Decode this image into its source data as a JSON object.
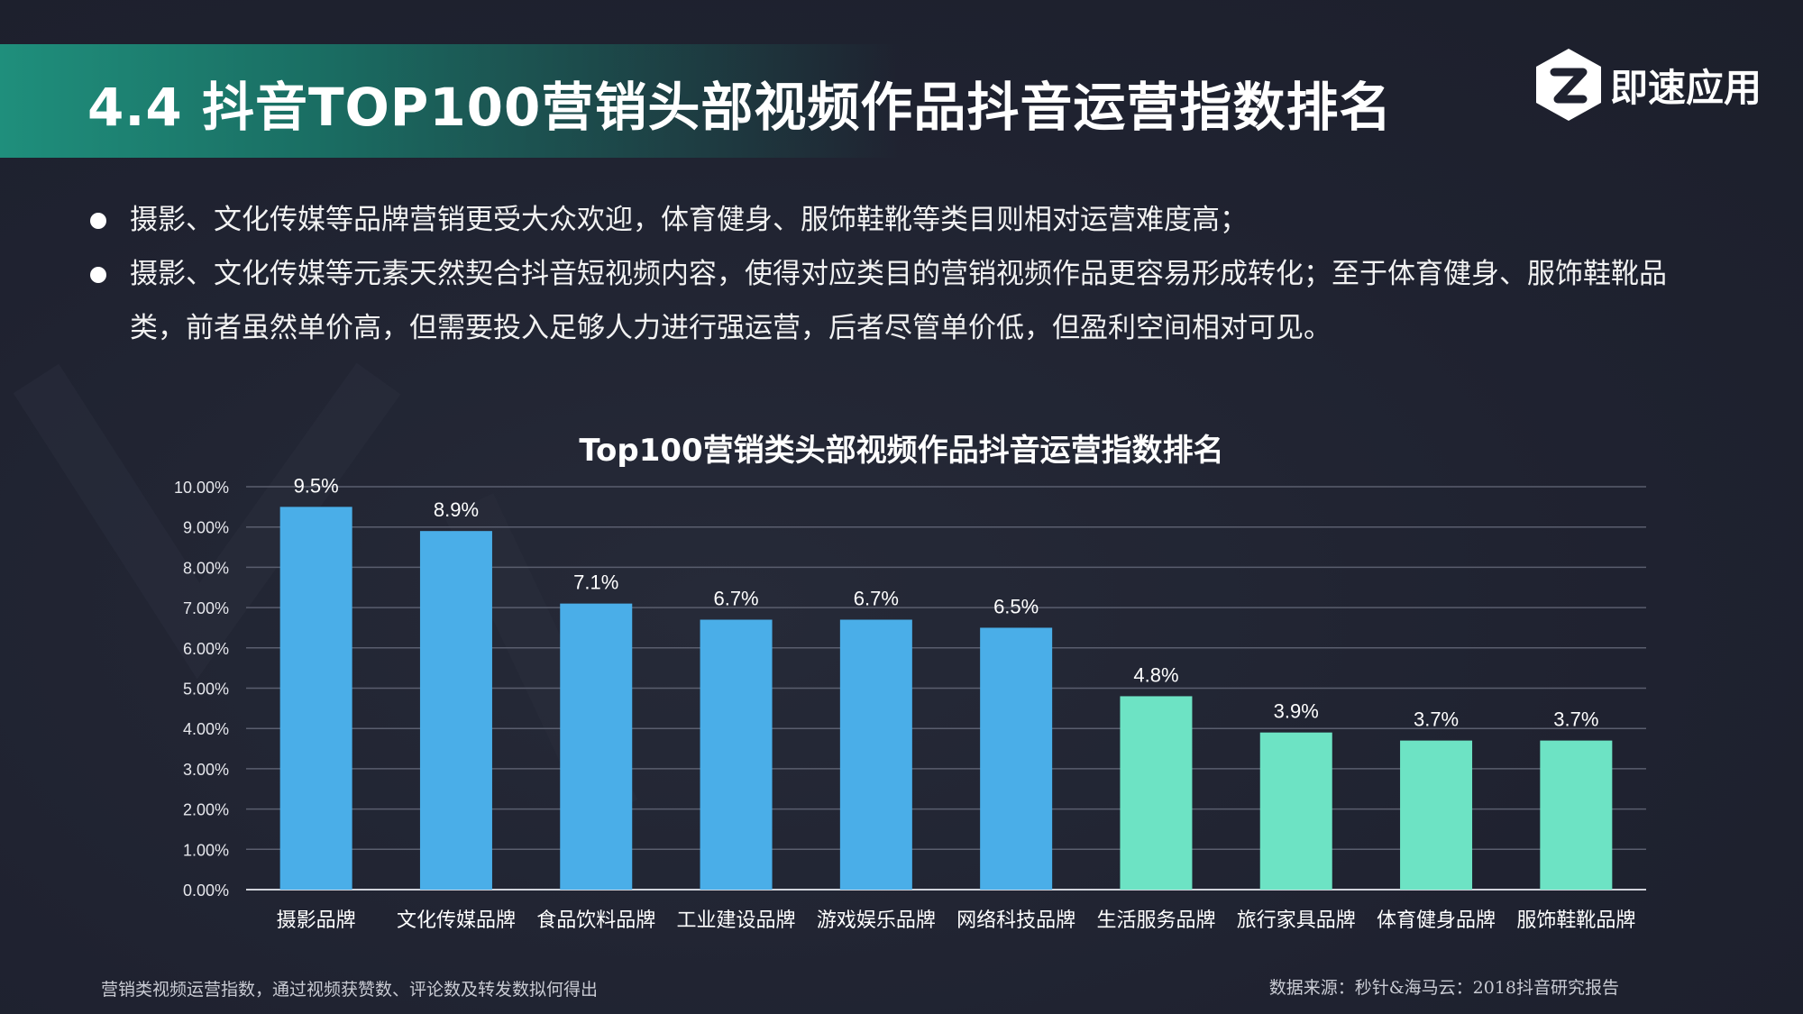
{
  "header": {
    "title": "4.4  抖音TOP100营销头部视频作品抖音运营指数排名",
    "logo_text": "即速应用"
  },
  "bullets": [
    "摄影、文化传媒等品牌营销更受大众欢迎，体育健身、服饰鞋靴等类目则相对运营难度高；",
    "摄影、文化传媒等元素天然契合抖音短视频内容，使得对应类目的营销视频作品更容易形成转化；至于体育健身、服饰鞋靴品类，前者虽然单价高，但需要投入足够人力进行强运营，后者尽管单价低，但盈利空间相对可见。"
  ],
  "footnotes": {
    "left": "营销类视频运营指数，通过视频获赞数、评论数及转发数拟何得出",
    "right": "数据来源：秒针&海马云：2018抖音研究报告"
  },
  "colors": {
    "background": "#1f2230",
    "accent": "#1f8f7c",
    "bar_blue": "#4aaee8",
    "bar_green": "#6de3c4",
    "grid": "#5a5e6e",
    "axis": "#d0d2da"
  },
  "chart_data": {
    "type": "bar",
    "title": "Top100营销类头部视频作品抖音运营指数排名",
    "categories": [
      "摄影品牌",
      "文化传媒品牌",
      "食品饮料品牌",
      "工业建设品牌",
      "游戏娱乐品牌",
      "网络科技品牌",
      "生活服务品牌",
      "旅行家具品牌",
      "体育健身品牌",
      "服饰鞋靴品牌"
    ],
    "values": [
      9.5,
      8.9,
      7.1,
      6.7,
      6.7,
      6.5,
      4.8,
      3.9,
      3.7,
      3.7
    ],
    "data_labels": [
      "9.5%",
      "8.9%",
      "7.1%",
      "6.7%",
      "6.7%",
      "6.5%",
      "4.8%",
      "3.9%",
      "3.7%",
      "3.7%"
    ],
    "bar_colors": [
      "#4aaee8",
      "#4aaee8",
      "#4aaee8",
      "#4aaee8",
      "#4aaee8",
      "#4aaee8",
      "#6de3c4",
      "#6de3c4",
      "#6de3c4",
      "#6de3c4"
    ],
    "y_ticks": [
      "0.00%",
      "1.00%",
      "2.00%",
      "3.00%",
      "4.00%",
      "5.00%",
      "6.00%",
      "7.00%",
      "8.00%",
      "9.00%",
      "10.00%"
    ],
    "ylim": [
      0,
      10
    ],
    "xlabel": "",
    "ylabel": "",
    "grid": true
  }
}
